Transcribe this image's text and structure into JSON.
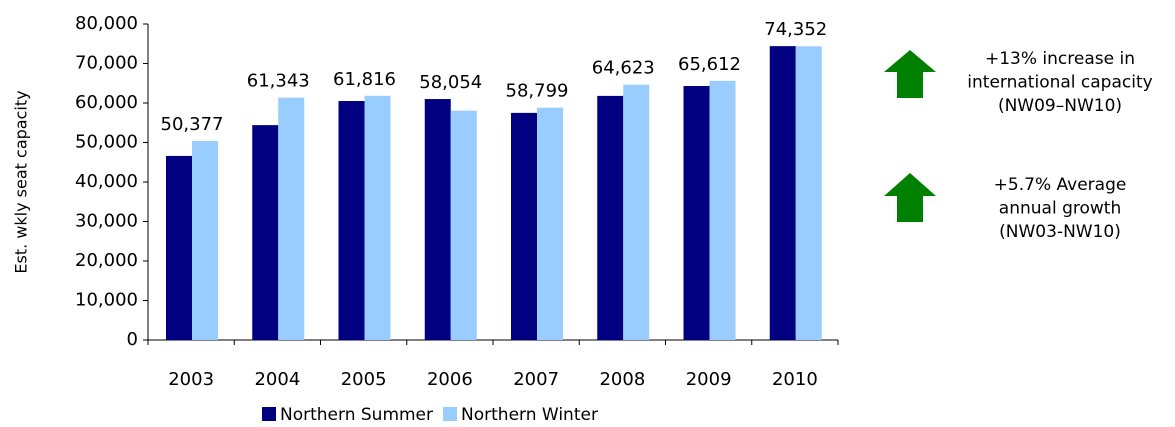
{
  "chart_data": {
    "type": "bar",
    "y_label": "Est. wkly seat capacity",
    "categories": [
      "2003",
      "2004",
      "2005",
      "2006",
      "2007",
      "2008",
      "2009",
      "2010"
    ],
    "series": [
      {
        "name": "Northern Summer",
        "color": "#000080",
        "values": [
          46600,
          54400,
          60500,
          61000,
          57500,
          61800,
          64300,
          74400
        ]
      },
      {
        "name": "Northern Winter",
        "color": "#99ccff",
        "values": [
          50377,
          61343,
          61816,
          58054,
          58799,
          64623,
          65612,
          74352
        ],
        "value_labels": [
          "50,377",
          "61,343",
          "61,816",
          "58,054",
          "58,799",
          "64,623",
          "65,612",
          "74,352"
        ]
      }
    ],
    "ylim": [
      0,
      80000
    ],
    "yticks": [
      0,
      {
        "value": 10000,
        "label": "10,000"
      },
      {
        "value": 20000,
        "label": "20,000"
      },
      {
        "value": 30000,
        "label": "30,000"
      },
      {
        "value": 40000,
        "label": "40,000"
      },
      {
        "value": 50000,
        "label": "50,000"
      },
      {
        "value": 60000,
        "label": "60,000"
      },
      {
        "value": 70000,
        "label": "70,000"
      },
      {
        "value": 80000,
        "label": "80,000"
      }
    ],
    "legend": "bottom",
    "annotations": [
      {
        "lines": [
          "+13% increase in",
          "international capacity",
          "(NW09–NW10)"
        ]
      },
      {
        "lines": [
          "+5.7% Average",
          "annual growth",
          "(NW03-NW10)"
        ]
      }
    ]
  }
}
